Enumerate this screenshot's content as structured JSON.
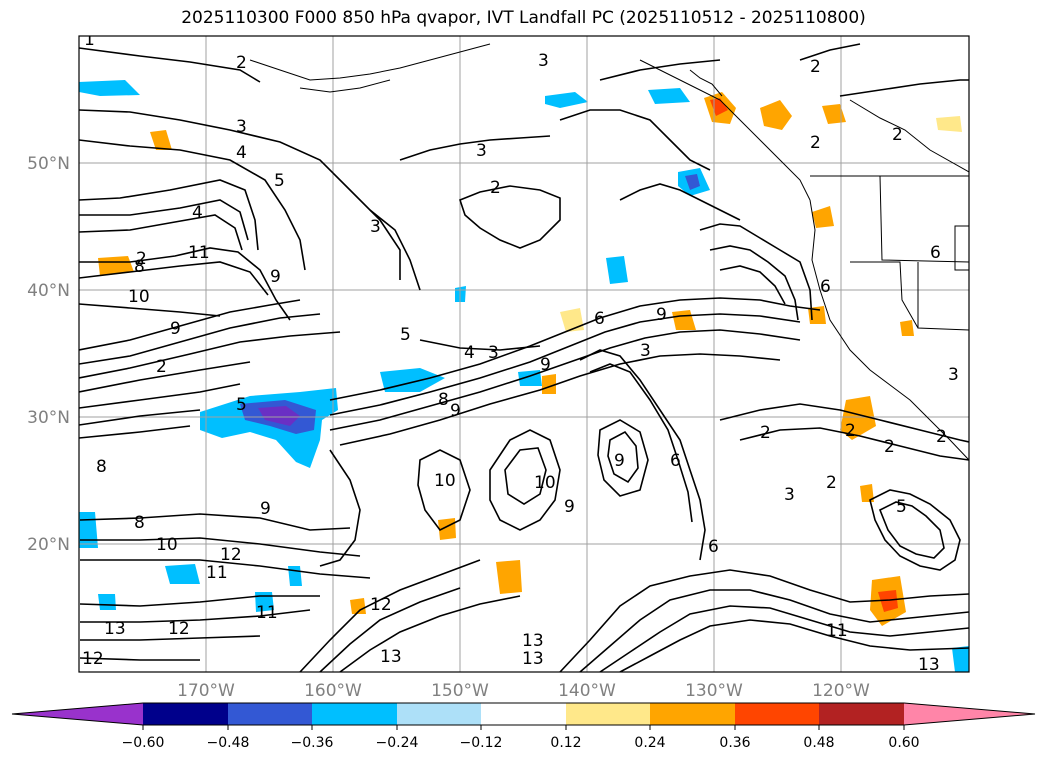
{
  "title": "2025110300 F000 850 hPa qvapor, IVT Landfall PC (2025110512 - 2025110800)",
  "colors": {
    "contour": "#000000",
    "grid": "#a0a0a0",
    "tick_label": "#808080"
  },
  "map": {
    "lat_labels": [
      "50°N",
      "40°N",
      "30°N",
      "20°N"
    ],
    "lon_labels": [
      "170°W",
      "160°W",
      "150°W",
      "140°W",
      "130°W",
      "120°W"
    ],
    "contour_labels": [
      "1",
      "2",
      "2",
      "2",
      "2",
      "2",
      "2",
      "2",
      "2",
      "2",
      "3",
      "3",
      "3",
      "3",
      "3",
      "3",
      "3",
      "3",
      "4",
      "4",
      "4",
      "5",
      "5",
      "5",
      "5",
      "6",
      "6",
      "6",
      "6",
      "6",
      "8",
      "8",
      "8",
      "8",
      "9",
      "9",
      "9",
      "9",
      "9",
      "9",
      "9",
      "9",
      "10",
      "10",
      "10",
      "10",
      "11",
      "11",
      "11",
      "11",
      "12",
      "12",
      "12",
      "12",
      "13",
      "13",
      "13",
      "13",
      "13",
      "2",
      "2",
      "2"
    ]
  },
  "colorbar": {
    "tick_labels": [
      "−0.60",
      "−0.48",
      "−0.36",
      "−0.24",
      "−0.12",
      "0.12",
      "0.24",
      "0.36",
      "0.48",
      "0.60"
    ],
    "bins": [
      {
        "color": "#9932CC"
      },
      {
        "color": "#00008B"
      },
      {
        "color": "#3358D4"
      },
      {
        "color": "#00BFFF"
      },
      {
        "color": "#ADE0F8"
      },
      {
        "color": "#FFFFFF"
      },
      {
        "color": "#FFE88A"
      },
      {
        "color": "#FFA500"
      },
      {
        "color": "#FF4500"
      },
      {
        "color": "#B22222"
      },
      {
        "color": "#FF85A8"
      }
    ]
  }
}
